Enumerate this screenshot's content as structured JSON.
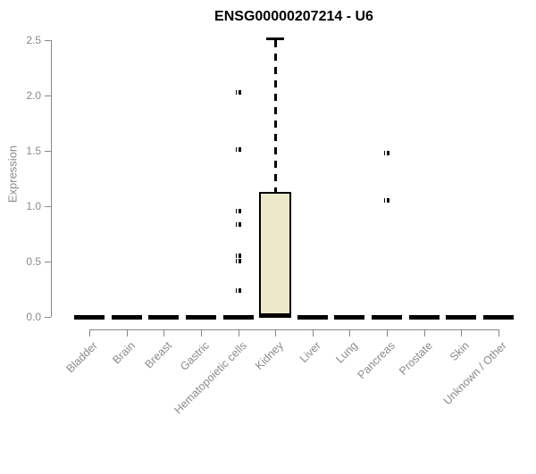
{
  "chart_data": {
    "type": "boxplot",
    "title": "ENSG00000207214 - U6",
    "xlabel": "",
    "ylabel": "Expression",
    "ylim": [
      0,
      2.5
    ],
    "yticks": [
      "0.0",
      "0.5",
      "1.0",
      "1.5",
      "2.0",
      "2.5"
    ],
    "grid": false,
    "legend": "none",
    "categories": [
      "Bladder",
      "Brain",
      "Breast",
      "Gastric",
      "Hematopoietic cells",
      "Kidney",
      "Liver",
      "Lung",
      "Pancreas",
      "Prostate",
      "Skin",
      "Unknown / Other"
    ],
    "series": [
      {
        "name": "Bladder",
        "q1": 0,
        "median": 0,
        "q3": 0,
        "whisker_low": 0,
        "whisker_high": 0,
        "outliers": []
      },
      {
        "name": "Brain",
        "q1": 0,
        "median": 0,
        "q3": 0,
        "whisker_low": 0,
        "whisker_high": 0,
        "outliers": []
      },
      {
        "name": "Breast",
        "q1": 0,
        "median": 0,
        "q3": 0,
        "whisker_low": 0,
        "whisker_high": 0,
        "outliers": []
      },
      {
        "name": "Gastric",
        "q1": 0,
        "median": 0,
        "q3": 0,
        "whisker_low": 0,
        "whisker_high": 0,
        "outliers": []
      },
      {
        "name": "Hematopoietic cells",
        "q1": 0,
        "median": 0,
        "q3": 0,
        "whisker_low": 0,
        "whisker_high": 0,
        "outliers": [
          2.03,
          1.52,
          0.96,
          0.84,
          0.56,
          0.51,
          0.24
        ]
      },
      {
        "name": "Kidney",
        "q1": 0,
        "median": 0.02,
        "q3": 1.13,
        "whisker_low": 0,
        "whisker_high": 2.52,
        "outliers": []
      },
      {
        "name": "Liver",
        "q1": 0,
        "median": 0,
        "q3": 0,
        "whisker_low": 0,
        "whisker_high": 0,
        "outliers": []
      },
      {
        "name": "Lung",
        "q1": 0,
        "median": 0,
        "q3": 0,
        "whisker_low": 0,
        "whisker_high": 0,
        "outliers": []
      },
      {
        "name": "Pancreas",
        "q1": 0,
        "median": 0,
        "q3": 0,
        "whisker_low": 0,
        "whisker_high": 0,
        "outliers": [
          1.48,
          1.06
        ]
      },
      {
        "name": "Prostate",
        "q1": 0,
        "median": 0,
        "q3": 0,
        "whisker_low": 0,
        "whisker_high": 0,
        "outliers": []
      },
      {
        "name": "Skin",
        "q1": 0,
        "median": 0,
        "q3": 0,
        "whisker_low": 0,
        "whisker_high": 0,
        "outliers": []
      },
      {
        "name": "Unknown / Other",
        "q1": 0,
        "median": 0,
        "q3": 0,
        "whisker_low": 0,
        "whisker_high": 0,
        "outliers": []
      }
    ],
    "colors": {
      "box_fill": "#ece8ca",
      "box_border": "#000000",
      "flat_bar": "#000000",
      "outlier": "#000000",
      "axis": "#888888",
      "tick_label": "#8a8a8a",
      "title": "#000000"
    }
  }
}
